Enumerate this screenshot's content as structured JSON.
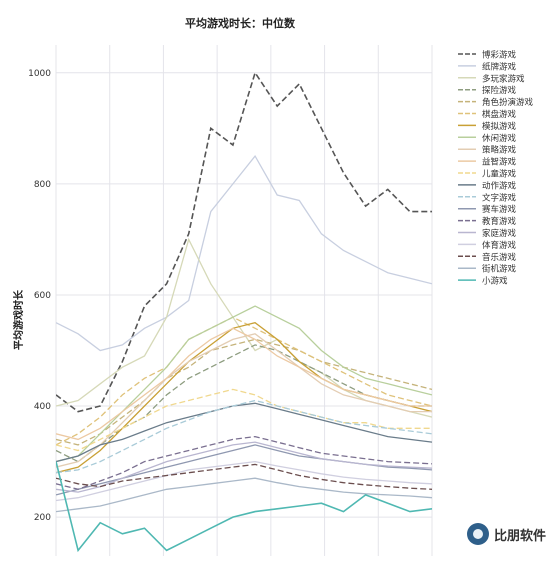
{
  "chart_data": {
    "type": "line",
    "title": "平均游戏时长：中位数",
    "ylabel": "平均游戏时长",
    "xlabel": "",
    "ylim": [
      130,
      1050
    ],
    "xlim": [
      0,
      34
    ],
    "yticks": [
      200,
      400,
      600,
      800,
      1000
    ],
    "grid": true,
    "legend_position": "right",
    "x": [
      0,
      2,
      4,
      6,
      8,
      10,
      12,
      14,
      16,
      18,
      20,
      22,
      24,
      26,
      28,
      30,
      32,
      34
    ],
    "series": [
      {
        "name": "博彩游戏",
        "color": "#555555",
        "dash": "dashed",
        "values": [
          420,
          390,
          400,
          480,
          580,
          620,
          710,
          900,
          870,
          1000,
          940,
          980,
          900,
          820,
          760,
          790,
          750,
          750
        ]
      },
      {
        "name": "纸牌游戏",
        "color": "#c8cfe0",
        "dash": "solid",
        "values": [
          550,
          530,
          500,
          510,
          540,
          560,
          590,
          750,
          800,
          850,
          780,
          770,
          710,
          680,
          660,
          640,
          630,
          620
        ]
      },
      {
        "name": "多玩家游戏",
        "color": "#d6d9b8",
        "dash": "solid",
        "values": [
          400,
          410,
          440,
          470,
          490,
          560,
          700,
          620,
          560,
          500,
          520,
          480,
          460,
          430,
          410,
          400,
          390,
          380
        ]
      },
      {
        "name": "探险游戏",
        "color": "#8e9d80",
        "dash": "dashed",
        "values": [
          320,
          300,
          330,
          360,
          380,
          420,
          450,
          470,
          490,
          510,
          500,
          480,
          460,
          440,
          420,
          410,
          400,
          400
        ]
      },
      {
        "name": "角色扮演游戏",
        "color": "#c5b37a",
        "dash": "dashed",
        "values": [
          340,
          330,
          350,
          380,
          410,
          450,
          470,
          500,
          510,
          520,
          510,
          500,
          480,
          470,
          460,
          450,
          440,
          430
        ]
      },
      {
        "name": "棋盘游戏",
        "color": "#dfc27a",
        "dash": "dashed",
        "values": [
          330,
          350,
          380,
          420,
          450,
          470,
          520,
          540,
          560,
          540,
          520,
          500,
          480,
          460,
          440,
          420,
          410,
          400
        ]
      },
      {
        "name": "模拟游戏",
        "color": "#c9a035",
        "dash": "solid",
        "values": [
          280,
          290,
          320,
          360,
          400,
          440,
          480,
          510,
          540,
          550,
          520,
          480,
          450,
          430,
          420,
          410,
          400,
          390
        ]
      },
      {
        "name": "休闲游戏",
        "color": "#b8cf9c",
        "dash": "solid",
        "values": [
          300,
          310,
          350,
          390,
          430,
          470,
          520,
          540,
          560,
          580,
          560,
          540,
          500,
          470,
          450,
          440,
          430,
          420
        ]
      },
      {
        "name": "策略游戏",
        "color": "#e3cdb3",
        "dash": "solid",
        "values": [
          290,
          300,
          330,
          370,
          410,
          450,
          480,
          500,
          520,
          530,
          500,
          470,
          440,
          420,
          410,
          400,
          390,
          390
        ]
      },
      {
        "name": "益智游戏",
        "color": "#ecc9a3",
        "dash": "solid",
        "values": [
          350,
          340,
          360,
          390,
          420,
          450,
          490,
          520,
          540,
          520,
          490,
          470,
          450,
          430,
          420,
          410,
          400,
          400
        ]
      },
      {
        "name": "儿童游戏",
        "color": "#f0d88e",
        "dash": "dashed",
        "values": [
          330,
          320,
          340,
          360,
          380,
          400,
          410,
          420,
          430,
          420,
          400,
          390,
          380,
          370,
          370,
          360,
          360,
          360
        ]
      },
      {
        "name": "动作游戏",
        "color": "#6a7c8a",
        "dash": "solid",
        "values": [
          300,
          310,
          330,
          340,
          355,
          370,
          380,
          390,
          400,
          405,
          395,
          385,
          375,
          365,
          355,
          345,
          340,
          335
        ]
      },
      {
        "name": "文字游戏",
        "color": "#a9cbd8",
        "dash": "dashed",
        "values": [
          280,
          285,
          300,
          320,
          340,
          360,
          375,
          390,
          400,
          410,
          400,
          390,
          380,
          370,
          365,
          360,
          355,
          350
        ]
      },
      {
        "name": "赛车游戏",
        "color": "#8f98b0",
        "dash": "solid",
        "values": [
          240,
          250,
          260,
          270,
          280,
          290,
          300,
          310,
          320,
          330,
          320,
          310,
          305,
          300,
          295,
          290,
          288,
          285
        ]
      },
      {
        "name": "教育游戏",
        "color": "#7a6f90",
        "dash": "dashed",
        "values": [
          260,
          250,
          265,
          280,
          300,
          310,
          320,
          330,
          340,
          345,
          335,
          325,
          315,
          310,
          305,
          300,
          298,
          296
        ]
      },
      {
        "name": "家庭游戏",
        "color": "#b9b6d0",
        "dash": "solid",
        "values": [
          250,
          245,
          255,
          270,
          285,
          300,
          310,
          320,
          330,
          335,
          325,
          315,
          305,
          300,
          295,
          292,
          290,
          288
        ]
      },
      {
        "name": "体育游戏",
        "color": "#d0cfe0",
        "dash": "solid",
        "values": [
          230,
          235,
          245,
          255,
          265,
          275,
          285,
          290,
          295,
          300,
          292,
          285,
          278,
          272,
          268,
          265,
          262,
          260
        ]
      },
      {
        "name": "音乐游戏",
        "color": "#6b4e4e",
        "dash": "dashed",
        "values": [
          270,
          260,
          255,
          265,
          270,
          275,
          280,
          285,
          290,
          295,
          285,
          275,
          268,
          262,
          258,
          255,
          252,
          250
        ]
      },
      {
        "name": "街机游戏",
        "color": "#aab8c8",
        "dash": "solid",
        "values": [
          210,
          215,
          220,
          230,
          240,
          250,
          255,
          260,
          265,
          270,
          262,
          255,
          250,
          245,
          242,
          240,
          238,
          235
        ]
      },
      {
        "name": "小游戏",
        "color": "#4fb8b2",
        "dash": "solid",
        "values": [
          300,
          140,
          190,
          170,
          180,
          140,
          160,
          180,
          200,
          210,
          215,
          220,
          225,
          210,
          240,
          225,
          210,
          215
        ]
      }
    ]
  },
  "watermark": {
    "text": "比朋软件"
  }
}
